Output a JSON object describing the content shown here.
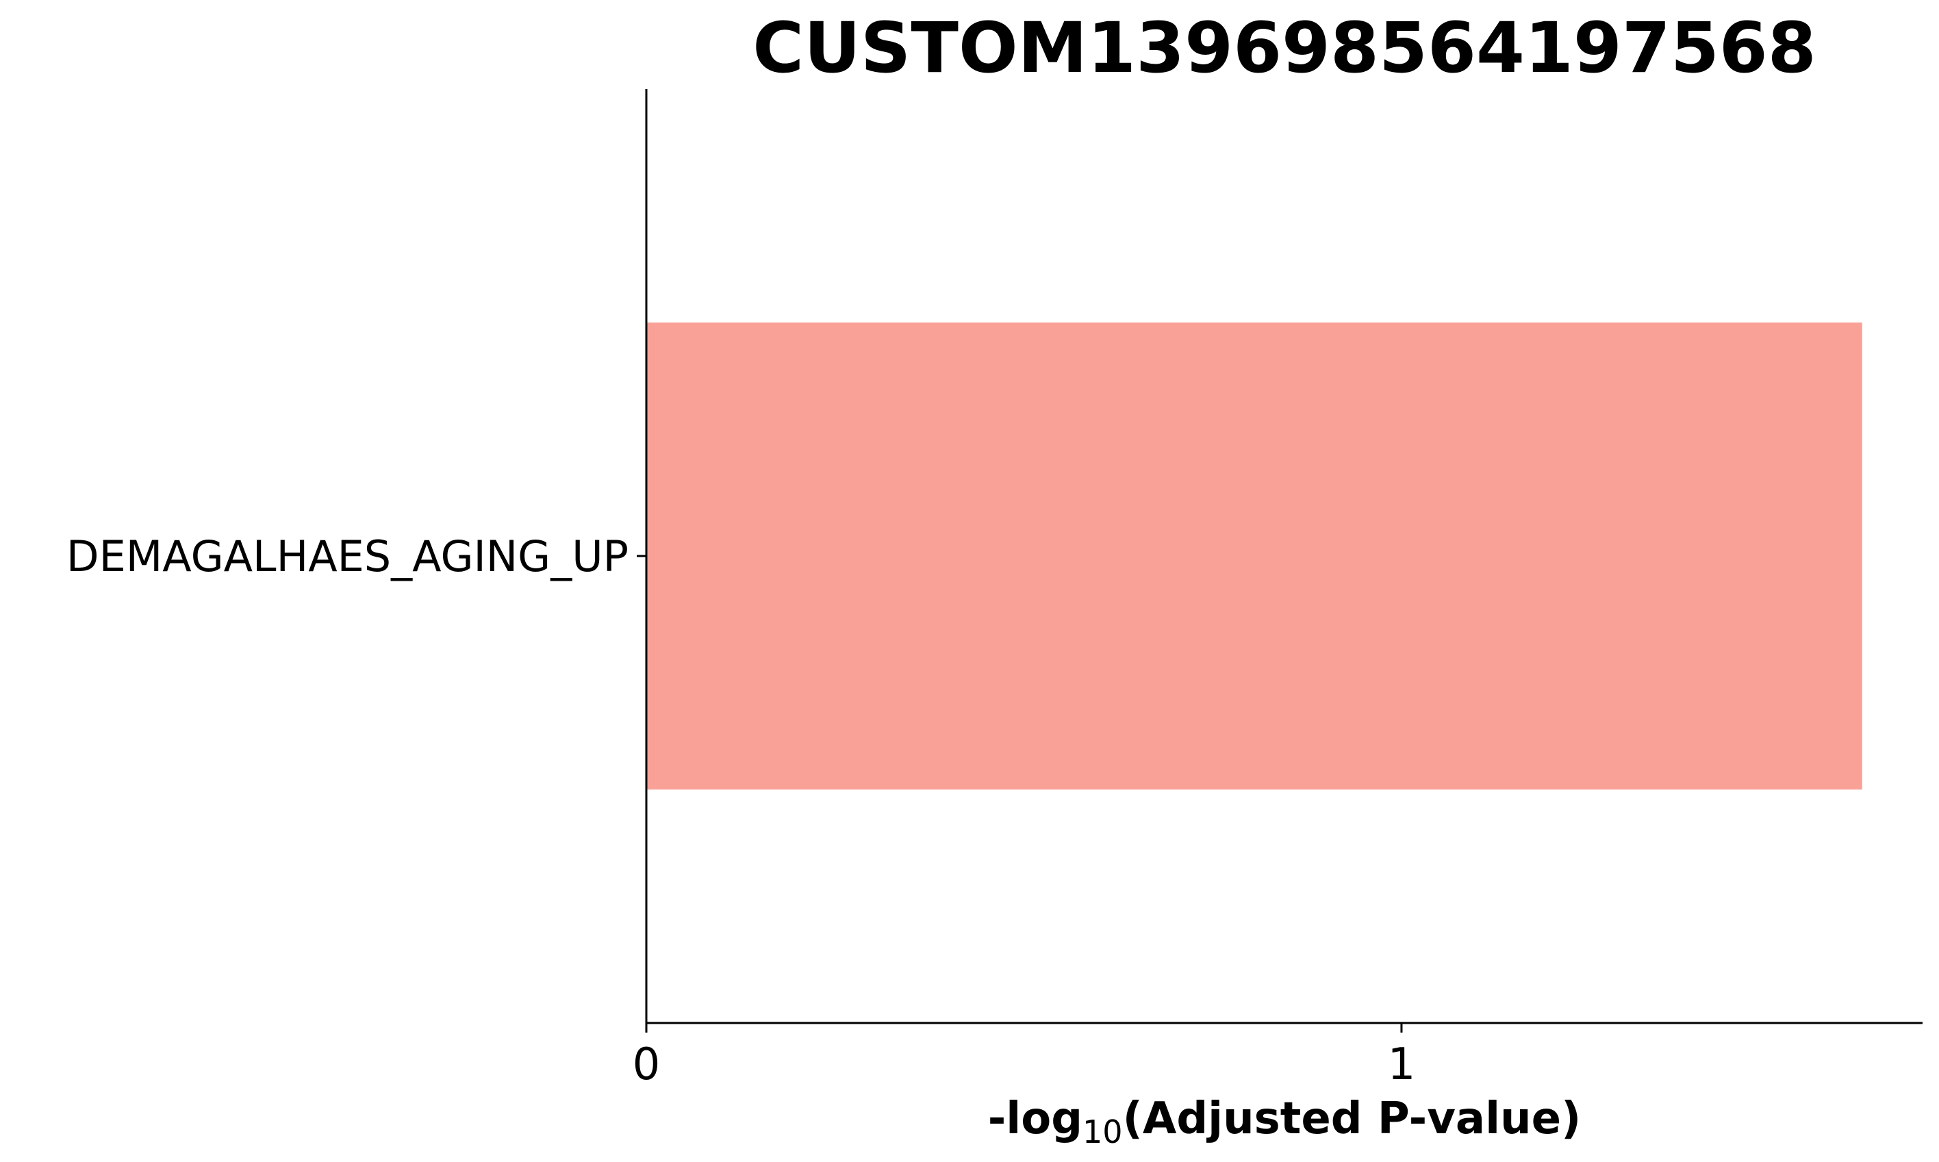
{
  "chart_data": {
    "type": "bar",
    "orientation": "horizontal",
    "title": "CUSTOM139698564197568",
    "categories": [
      "DEMAGALHAES_AGING_UP"
    ],
    "values": [
      1.61
    ],
    "xlabel": {
      "prefix": "-log",
      "subscript": "10",
      "suffix": "(Adjusted P-value)"
    },
    "xlim": [
      0,
      1.69
    ],
    "xticks": [
      "0",
      "1"
    ],
    "bar_color": "#f9a197",
    "grid": false
  }
}
